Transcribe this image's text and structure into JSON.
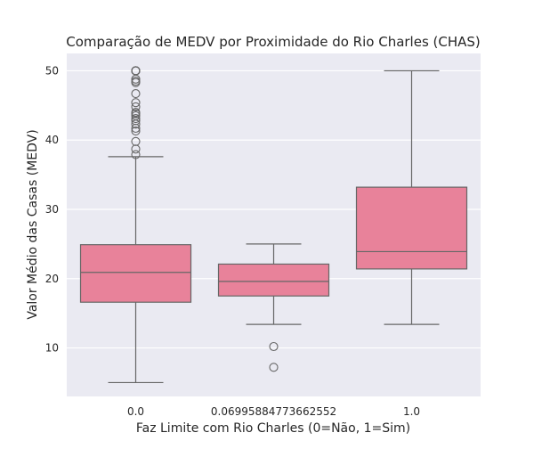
{
  "chart_data": {
    "type": "box",
    "title": "Comparação de MEDV por Proximidade do Rio Charles (CHAS)",
    "xlabel": "Faz Limite com Rio Charles (0=Não, 1=Sim)",
    "ylabel": "Valor Médio das Casas (MEDV)",
    "categories": [
      "0.0",
      "0.06995884773662552",
      "1.0"
    ],
    "ylim": [
      3.0,
      52.5
    ],
    "yticks": [
      10,
      20,
      30,
      40,
      50
    ],
    "grid": true,
    "box_color": "#e8829a",
    "background_color": "#eaeaf2",
    "boxes": [
      {
        "category": "0.0",
        "whisker_low": 5.0,
        "q1": 16.6,
        "median": 20.9,
        "q3": 24.9,
        "whisker_high": 37.6,
        "outliers": [
          37.9,
          38.7,
          39.8,
          41.3,
          41.7,
          42.3,
          42.8,
          43.1,
          43.5,
          43.8,
          44.0,
          44.8,
          45.4,
          46.7,
          48.3,
          48.5,
          48.8,
          50.0,
          50.0,
          50.0,
          50.0,
          50.0
        ]
      },
      {
        "category": "0.06995884773662552",
        "whisker_low": 13.4,
        "q1": 17.5,
        "median": 19.6,
        "q3": 22.1,
        "whisker_high": 25.0,
        "outliers": [
          10.2,
          7.2
        ]
      },
      {
        "category": "1.0",
        "whisker_low": 13.4,
        "q1": 21.4,
        "median": 23.9,
        "q3": 33.2,
        "whisker_high": 50.0,
        "outliers": []
      }
    ]
  }
}
